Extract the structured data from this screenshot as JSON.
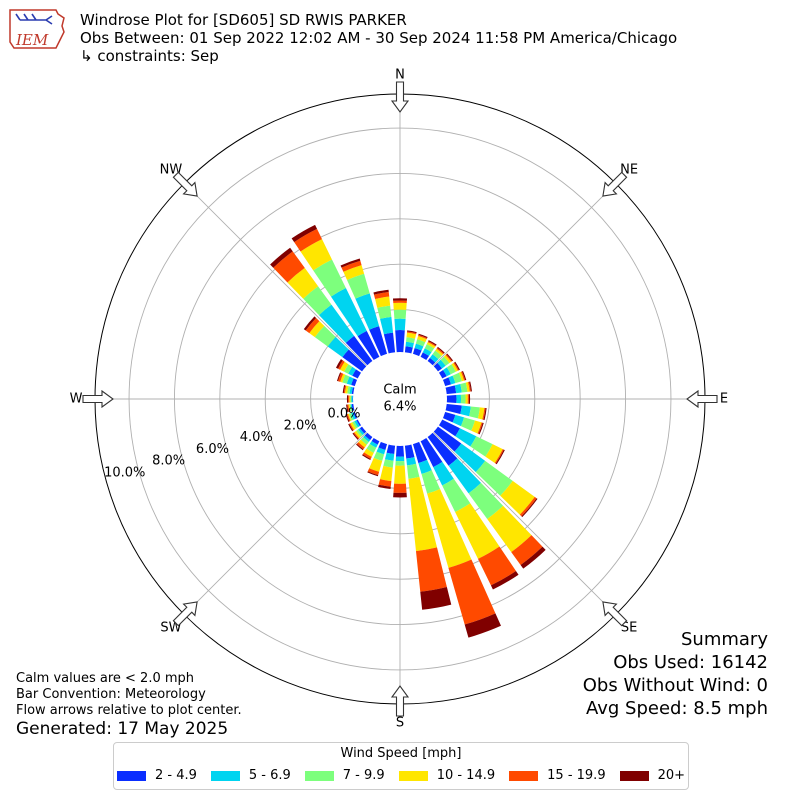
{
  "header": {
    "logo_text": "IEM",
    "title_line1": "Windrose Plot for [SD605] SD RWIS PARKER",
    "title_line2": "Obs Between: 01 Sep 2022 12:02 AM - 30 Sep 2024 11:58 PM America/Chicago",
    "title_line3": "↳ constraints: Sep"
  },
  "summary": {
    "title": "Summary",
    "obs_used": "Obs Used: 16142",
    "obs_without_wind": "Obs Without Wind: 0",
    "avg_speed": "Avg Speed: 8.5 mph"
  },
  "notes": {
    "line1": "Calm values are < 2.0 mph",
    "line2": "Bar Convention: Meteorology",
    "line3": "Flow arrows relative to plot center.",
    "generated": "Generated: 17 May 2025"
  },
  "legend": {
    "title": "Wind Speed [mph]",
    "items": [
      {
        "label": "2 - 4.9",
        "color": "#0a2eff"
      },
      {
        "label": "5 - 6.9",
        "color": "#00d4f0"
      },
      {
        "label": "7 - 9.9",
        "color": "#7dff7d"
      },
      {
        "label": "10 - 14.9",
        "color": "#ffe600"
      },
      {
        "label": "15 - 19.9",
        "color": "#ff4a00"
      },
      {
        "label": "20+",
        "color": "#800000"
      }
    ]
  },
  "chart_data": {
    "type": "windrose",
    "calm_label": "Calm",
    "calm_value": "6.4%",
    "radial_ticks": [
      "0.0%",
      "2.0%",
      "4.0%",
      "6.0%",
      "8.0%",
      "10.0%"
    ],
    "radial_tick_values": [
      0,
      2,
      4,
      6,
      8,
      10
    ],
    "radial_max": 11.5,
    "compass_labels": [
      {
        "label": "N",
        "dir": 0
      },
      {
        "label": "NE",
        "dir": 45
      },
      {
        "label": "E",
        "dir": 90
      },
      {
        "label": "SE",
        "dir": 135
      },
      {
        "label": "S",
        "dir": 180
      },
      {
        "label": "SW",
        "dir": 225
      },
      {
        "label": "W",
        "dir": 270
      },
      {
        "label": "NW",
        "dir": 315
      }
    ],
    "bin_width_deg": 10,
    "speed_bins": [
      "2 - 4.9",
      "5 - 6.9",
      "7 - 9.9",
      "10 - 14.9",
      "15 - 19.9",
      "20+"
    ],
    "colors": [
      "#0a2eff",
      "#00d4f0",
      "#7dff7d",
      "#ffe600",
      "#ff4a00",
      "#800000"
    ],
    "directions": [
      {
        "dir": 0,
        "cum": [
          1.1,
          1.6,
          2.0,
          2.3,
          2.4,
          2.5
        ]
      },
      {
        "dir": 10,
        "cum": [
          0.4,
          0.6,
          0.8,
          1.0,
          1.05,
          1.1
        ]
      },
      {
        "dir": 20,
        "cum": [
          0.4,
          0.6,
          0.8,
          0.95,
          1.0,
          1.05
        ]
      },
      {
        "dir": 30,
        "cum": [
          0.35,
          0.55,
          0.75,
          0.85,
          0.9,
          0.95
        ]
      },
      {
        "dir": 40,
        "cum": [
          0.3,
          0.5,
          0.7,
          0.8,
          0.85,
          0.9
        ]
      },
      {
        "dir": 50,
        "cum": [
          0.35,
          0.55,
          0.75,
          0.85,
          0.9,
          0.95
        ]
      },
      {
        "dir": 60,
        "cum": [
          0.35,
          0.55,
          0.8,
          0.9,
          0.95,
          1.0
        ]
      },
      {
        "dir": 70,
        "cum": [
          0.4,
          0.6,
          0.9,
          1.0,
          1.05,
          1.1
        ]
      },
      {
        "dir": 80,
        "cum": [
          0.55,
          0.8,
          1.05,
          1.15,
          1.2,
          1.25
        ]
      },
      {
        "dir": 90,
        "cum": [
          0.55,
          0.75,
          0.95,
          1.05,
          1.1,
          1.15
        ]
      },
      {
        "dir": 100,
        "cum": [
          0.8,
          1.2,
          1.6,
          1.8,
          1.85,
          1.9
        ]
      },
      {
        "dir": 110,
        "cum": [
          0.6,
          1.0,
          1.5,
          1.8,
          1.85,
          1.9
        ]
      },
      {
        "dir": 120,
        "cum": [
          1.0,
          1.8,
          2.6,
          3.1,
          3.15,
          3.2
        ]
      },
      {
        "dir": 130,
        "cum": [
          1.4,
          2.7,
          4.2,
          5.4,
          5.5,
          5.55
        ]
      },
      {
        "dir": 140,
        "cum": [
          1.7,
          3.2,
          4.6,
          6.4,
          7.1,
          7.3
        ]
      },
      {
        "dir": 150,
        "cum": [
          1.4,
          2.3,
          3.6,
          5.9,
          7.2,
          7.4
        ]
      },
      {
        "dir": 160,
        "cum": [
          1.0,
          1.5,
          2.4,
          5.8,
          8.4,
          9.0
        ]
      },
      {
        "dir": 170,
        "cum": [
          0.7,
          1.0,
          1.6,
          4.8,
          6.6,
          7.4
        ]
      },
      {
        "dir": 180,
        "cum": [
          0.6,
          0.8,
          1.0,
          1.8,
          2.2,
          2.4
        ]
      },
      {
        "dir": 190,
        "cum": [
          0.5,
          0.8,
          1.1,
          1.7,
          1.95,
          2.05
        ]
      },
      {
        "dir": 200,
        "cum": [
          0.4,
          0.6,
          0.9,
          1.4,
          1.55,
          1.6
        ]
      },
      {
        "dir": 210,
        "cum": [
          0.3,
          0.45,
          0.7,
          0.9,
          1.0,
          1.05
        ]
      },
      {
        "dir": 220,
        "cum": [
          0.3,
          0.4,
          0.55,
          0.7,
          0.8,
          0.85
        ]
      },
      {
        "dir": 230,
        "cum": [
          0.25,
          0.35,
          0.45,
          0.55,
          0.6,
          0.65
        ]
      },
      {
        "dir": 240,
        "cum": [
          0.2,
          0.3,
          0.4,
          0.5,
          0.55,
          0.6
        ]
      },
      {
        "dir": 250,
        "cum": [
          0.2,
          0.3,
          0.4,
          0.45,
          0.5,
          0.55
        ]
      },
      {
        "dir": 260,
        "cum": [
          0.2,
          0.25,
          0.3,
          0.35,
          0.4,
          0.45
        ]
      },
      {
        "dir": 270,
        "cum": [
          0.15,
          0.2,
          0.25,
          0.3,
          0.35,
          0.4
        ]
      },
      {
        "dir": 280,
        "cum": [
          0.2,
          0.3,
          0.4,
          0.5,
          0.55,
          0.6
        ]
      },
      {
        "dir": 290,
        "cum": [
          0.3,
          0.5,
          0.7,
          0.8,
          0.9,
          0.95
        ]
      },
      {
        "dir": 300,
        "cum": [
          0.4,
          0.6,
          0.8,
          1.0,
          1.1,
          1.2
        ]
      },
      {
        "dir": 310,
        "cum": [
          1.2,
          2.0,
          2.7,
          3.0,
          3.2,
          3.3
        ]
      },
      {
        "dir": 320,
        "cum": [
          1.5,
          3.2,
          4.2,
          5.2,
          6.1,
          6.3
        ]
      },
      {
        "dir": 330,
        "cum": [
          1.4,
          3.5,
          4.9,
          5.9,
          6.4,
          6.6
        ]
      },
      {
        "dir": 340,
        "cum": [
          1.4,
          2.9,
          3.8,
          4.2,
          4.4,
          4.5
        ]
      },
      {
        "dir": 350,
        "cum": [
          1.0,
          1.7,
          2.2,
          2.6,
          2.8,
          2.9
        ]
      }
    ]
  }
}
